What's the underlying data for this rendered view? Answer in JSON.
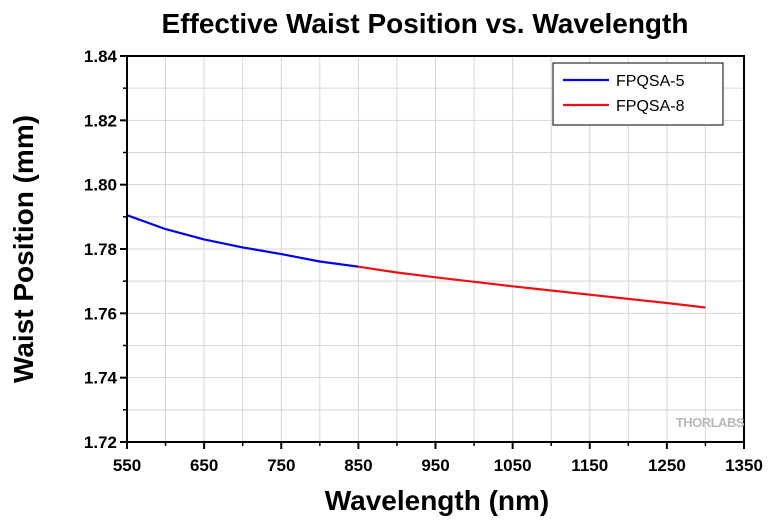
{
  "chart_data": {
    "type": "line",
    "title": "Effective Waist Position vs. Wavelength",
    "xlabel": "Wavelength (nm)",
    "ylabel": "Waist Position (mm)",
    "xlim": [
      550,
      1350
    ],
    "ylim": [
      1.72,
      1.84
    ],
    "xticks": [
      550,
      650,
      750,
      850,
      950,
      1050,
      1150,
      1250,
      1350
    ],
    "yticks": [
      1.72,
      1.74,
      1.76,
      1.78,
      1.8,
      1.82,
      1.84
    ],
    "xtick_labels": [
      "550",
      "650",
      "750",
      "850",
      "950",
      "1050",
      "1150",
      "1250",
      "1350"
    ],
    "ytick_labels": [
      "1.72",
      "1.74",
      "1.76",
      "1.78",
      "1.80",
      "1.82",
      "1.84"
    ],
    "grid": true,
    "legend_position": "top-right",
    "watermark": "THORLABS",
    "series": [
      {
        "name": "FPQSA-5",
        "color": "#0000ee",
        "x": [
          550,
          600,
          650,
          700,
          750,
          800,
          850
        ],
        "y": [
          1.7905,
          1.7862,
          1.783,
          1.7805,
          1.7784,
          1.7761,
          1.7745
        ]
      },
      {
        "name": "FPQSA-8",
        "color": "#ee1111",
        "x": [
          850,
          900,
          950,
          1000,
          1050,
          1100,
          1150,
          1200,
          1250,
          1300
        ],
        "y": [
          1.7745,
          1.7727,
          1.7712,
          1.7698,
          1.7684,
          1.7671,
          1.7658,
          1.7645,
          1.7632,
          1.7618
        ]
      }
    ]
  }
}
